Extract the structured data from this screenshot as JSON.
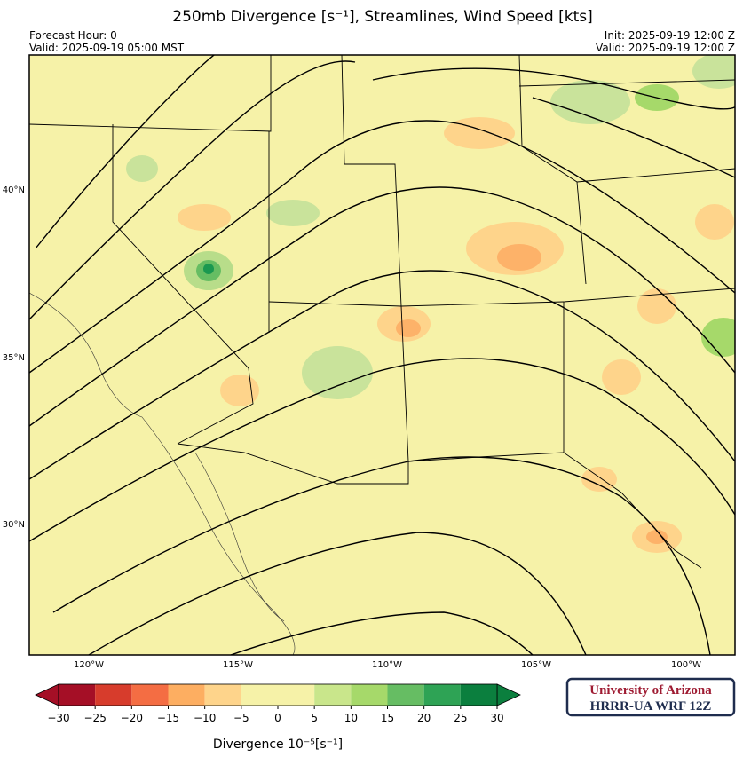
{
  "header": {
    "title": "250mb Divergence [s⁻¹], Streamlines, Wind Speed [kts]",
    "forecast_hour": "Forecast Hour: 0",
    "valid_local": "Valid: 2025-09-19 05:00 MST",
    "init": "Init: 2025-09-19 12:00 Z",
    "valid_utc": "Valid: 2025-09-19 12:00 Z"
  },
  "map": {
    "lat_labels": [
      "40°N",
      "35°N",
      "30°N"
    ],
    "lon_labels": [
      "120°W",
      "115°W",
      "110°W",
      "105°W",
      "100°W"
    ]
  },
  "colorbar": {
    "label": "Divergence 10⁻⁵[s⁻¹]",
    "lim": [
      -30,
      30
    ],
    "ticks": [
      {
        "value": -30,
        "label": "−30"
      },
      {
        "value": -25,
        "label": "−25"
      },
      {
        "value": -20,
        "label": "−20"
      },
      {
        "value": -15,
        "label": "−15"
      },
      {
        "value": -10,
        "label": "−10"
      },
      {
        "value": -5,
        "label": "−5"
      },
      0,
      5,
      10,
      15,
      20,
      25,
      30
    ],
    "colors": [
      "#a50f26",
      "#d73c2c",
      "#f46d43",
      "#fdae61",
      "#fed48b",
      "#f6f2a8",
      "#f6f2a8",
      "#c9e68b",
      "#a6d96a",
      "#66bd63",
      "#2ea355",
      "#0b7f3e"
    ],
    "under_color": "#a50f26",
    "over_color": "#0b7f3e"
  },
  "logo": {
    "line1": "University of Arizona",
    "line2": "HRRR-UA WRF 12Z"
  }
}
